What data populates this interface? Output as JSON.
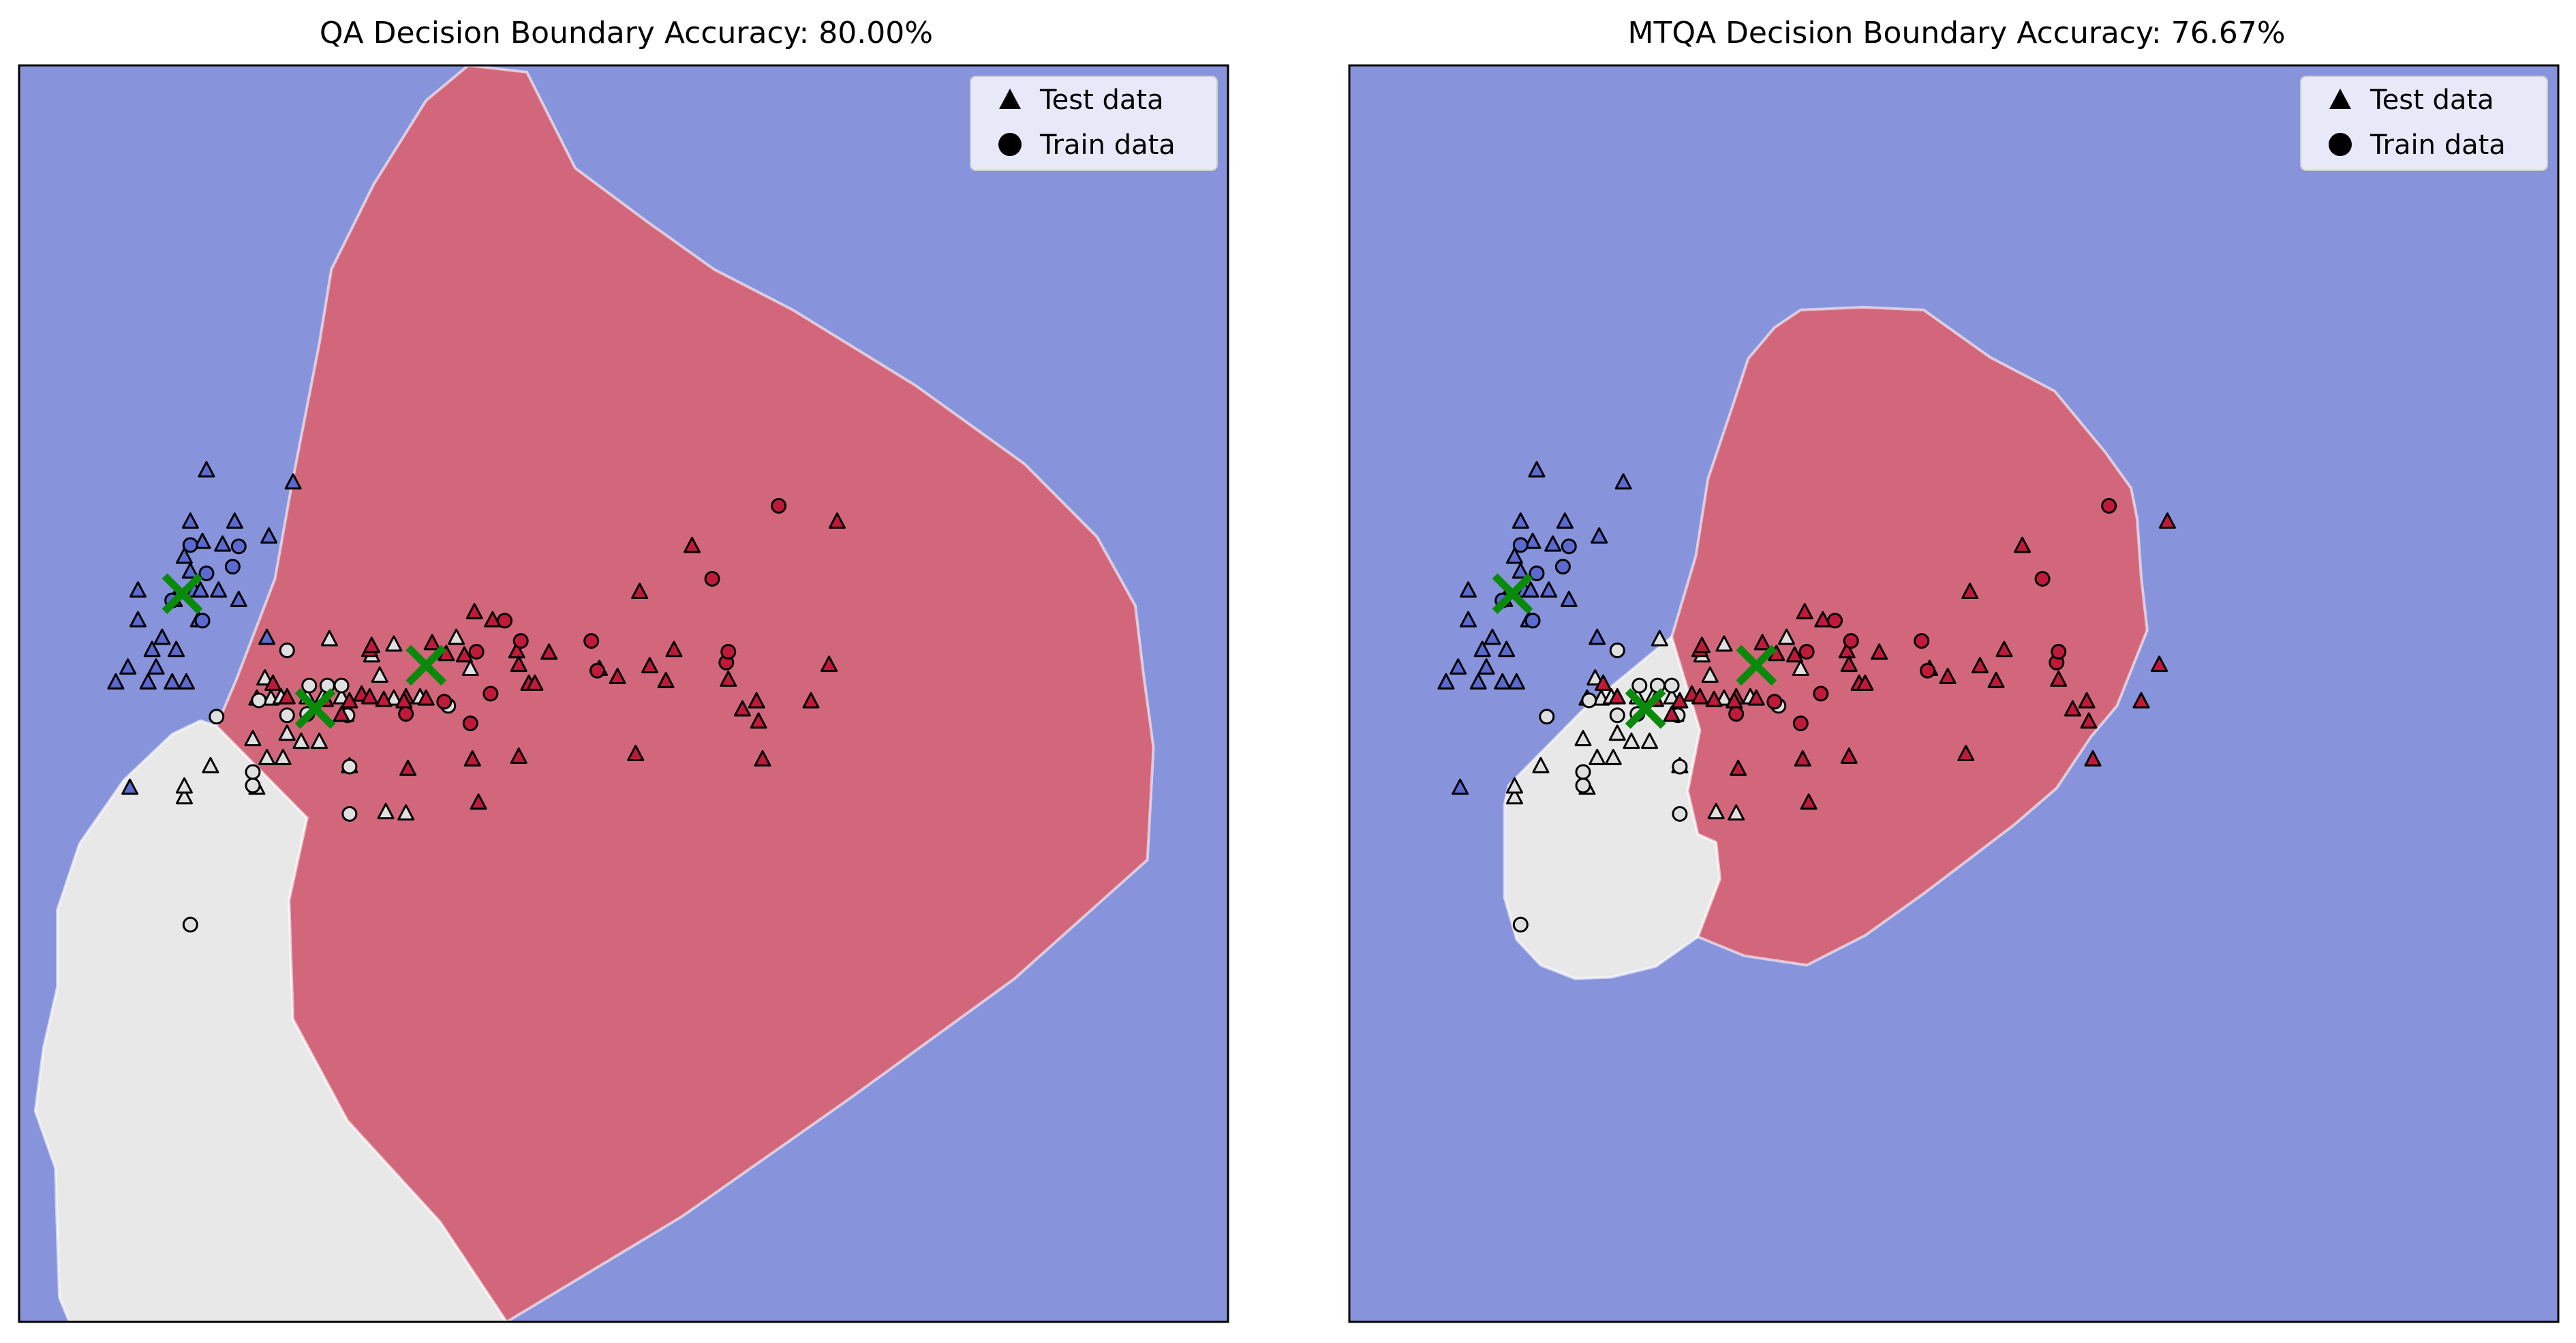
{
  "legend": {
    "test_label": "Test data",
    "train_label": "Train data"
  },
  "colors": {
    "class0": "#5a6acf",
    "class1": "#e0e0e0",
    "class2": "#c01a3a",
    "region0": "#8793db",
    "region1": "#e8e8e8",
    "region2": "#d2677c",
    "centroid": "#0a8a0a"
  },
  "chart_data": [
    {
      "type": "scatter",
      "title": "QA Decision Boundary Accuracy: 80.00%",
      "xlabel": "",
      "ylabel": "",
      "axes_ticks": "none",
      "legend_position": "top-right",
      "regions": [
        {
          "class": 0,
          "area": "background"
        },
        {
          "class": 1,
          "polygon": [
            [
              16.7,
              0
            ],
            [
              24.2,
              0
            ],
            [
              20.9,
              7.4
            ],
            [
              16.3,
              14.9
            ],
            [
              13.6,
              22.4
            ],
            [
              13.4,
              31.2
            ],
            [
              14.3,
              37.3
            ],
            [
              9.8,
              44.1
            ],
            [
              9.0,
              44.5
            ],
            [
              7.6,
              43.5
            ],
            [
              5.2,
              40.1
            ],
            [
              3.0,
              35.4
            ],
            [
              1.9,
              30.5
            ],
            [
              1.9,
              24.8
            ],
            [
              1.2,
              20.2
            ],
            [
              0.8,
              15.6
            ],
            [
              1.8,
              11.4
            ],
            [
              1.9,
              6.2
            ],
            [
              2.0,
              1.8
            ],
            [
              2.5,
              0
            ]
          ]
        },
        {
          "class": 2,
          "polygon": [
            [
              24.2,
              0
            ],
            [
              32.9,
              7.8
            ],
            [
              41.2,
              16.5
            ],
            [
              49.4,
              25.4
            ],
            [
              56.0,
              34.2
            ],
            [
              56.3,
              42.5
            ],
            [
              55.8,
              48.0
            ],
            [
              55.4,
              53.0
            ],
            [
              53.5,
              58.1
            ],
            [
              49.9,
              63.5
            ],
            [
              44.5,
              69.3
            ],
            [
              38.4,
              74.9
            ],
            [
              34.5,
              77.9
            ],
            [
              31.2,
              81.4
            ],
            [
              27.6,
              85.4
            ],
            [
              25.2,
              92.5
            ],
            [
              22.3,
              93.0
            ],
            [
              20.2,
              90.4
            ],
            [
              17.6,
              84.2
            ],
            [
              15.5,
              77.9
            ],
            [
              14.9,
              72.4
            ],
            [
              13.5,
              61.7
            ],
            [
              12.7,
              55.0
            ],
            [
              10.8,
              47.6
            ],
            [
              9.8,
              44.1
            ],
            [
              14.3,
              37.3
            ],
            [
              13.4,
              31.2
            ],
            [
              13.6,
              22.4
            ],
            [
              16.3,
              14.9
            ],
            [
              20.9,
              7.4
            ]
          ]
        }
      ],
      "centroids": [
        {
          "x": 8.1,
          "y": 53.9
        },
        [
          14.7,
          45.4
        ],
        [
          20.2,
          48.6
        ]
      ],
      "points": [
        [
          9.3,
          63.0,
          0,
          "t"
        ],
        [
          10.7,
          59.2,
          0,
          "t"
        ],
        [
          12.4,
          58.1,
          0,
          "t"
        ],
        [
          9.1,
          57.7,
          0,
          "t"
        ],
        [
          8.2,
          56.6,
          0,
          "t"
        ],
        [
          5.9,
          54.1,
          0,
          "t"
        ],
        [
          7.7,
          53.4,
          0,
          "t"
        ],
        [
          8.7,
          54.1,
          0,
          "t"
        ],
        [
          5.9,
          51.9,
          0,
          "t"
        ],
        [
          8.9,
          51.9,
          0,
          "t"
        ],
        [
          4.8,
          47.3,
          0,
          "t"
        ],
        [
          5.4,
          48.4,
          0,
          "t"
        ],
        [
          6.4,
          47.3,
          0,
          "t"
        ],
        [
          6.8,
          48.4,
          0,
          "t"
        ],
        [
          7.8,
          49.7,
          0,
          "t"
        ],
        [
          7.6,
          47.3,
          0,
          "t"
        ],
        [
          8.3,
          47.3,
          0,
          "t"
        ],
        [
          6.6,
          49.7,
          0,
          "t"
        ],
        [
          9.0,
          54.1,
          0,
          "t"
        ],
        [
          8.5,
          55.5,
          0,
          "t"
        ],
        [
          9.9,
          54.1,
          0,
          "t"
        ],
        [
          10.9,
          53.4,
          0,
          "t"
        ],
        [
          12.3,
          50.6,
          0,
          "t"
        ],
        [
          8.5,
          59.2,
          0,
          "t"
        ],
        [
          10.1,
          57.5,
          0,
          "t"
        ],
        [
          13.6,
          62.1,
          0,
          "t"
        ],
        [
          7.1,
          50.6,
          0,
          "t"
        ],
        [
          5.5,
          39.5,
          0,
          "t"
        ],
        [
          9.3,
          55.4,
          0,
          "c"
        ],
        [
          8.5,
          57.5,
          0,
          "c"
        ],
        [
          10.9,
          57.4,
          0,
          "c"
        ],
        [
          7.6,
          53.4,
          0,
          "c"
        ],
        [
          10.6,
          55.9,
          0,
          "c"
        ],
        [
          9.1,
          51.9,
          0,
          "c"
        ],
        [
          12.2,
          47.6,
          1,
          "t"
        ],
        [
          11.8,
          46.1,
          1,
          "t"
        ],
        [
          12.5,
          46.1,
          1,
          "t"
        ],
        [
          13.0,
          46.2,
          1,
          "t"
        ],
        [
          14.3,
          46.2,
          1,
          "t"
        ],
        [
          15.1,
          46.3,
          1,
          "t"
        ],
        [
          16.0,
          46.2,
          1,
          "t"
        ],
        [
          17.5,
          49.3,
          1,
          "t"
        ],
        [
          18.6,
          46.1,
          1,
          "t"
        ],
        [
          17.9,
          47.8,
          1,
          "t"
        ],
        [
          19.9,
          46.2,
          1,
          "t"
        ],
        [
          22.4,
          48.3,
          1,
          "t"
        ],
        [
          21.7,
          50.6,
          1,
          "t"
        ],
        [
          15.4,
          50.5,
          1,
          "t"
        ],
        [
          18.6,
          50.1,
          1,
          "t"
        ],
        [
          13.3,
          43.5,
          1,
          "t"
        ],
        [
          13.1,
          41.7,
          1,
          "t"
        ],
        [
          12.3,
          41.7,
          1,
          "t"
        ],
        [
          14.0,
          42.9,
          1,
          "t"
        ],
        [
          11.8,
          39.5,
          1,
          "t"
        ],
        [
          14.9,
          42.9,
          1,
          "t"
        ],
        [
          11.6,
          43.1,
          1,
          "t"
        ],
        [
          16.4,
          41.1,
          1,
          "t"
        ],
        [
          18.2,
          37.7,
          1,
          "t"
        ],
        [
          19.2,
          37.6,
          1,
          "t"
        ],
        [
          9.5,
          41.1,
          1,
          "t"
        ],
        [
          8.2,
          38.8,
          1,
          "t"
        ],
        [
          16.2,
          44.9,
          1,
          "t"
        ],
        [
          8.2,
          39.6,
          1,
          "t"
        ],
        [
          11.9,
          46.0,
          1,
          "c"
        ],
        [
          15.3,
          47.1,
          1,
          "c"
        ],
        [
          14.4,
          47.1,
          1,
          "c"
        ],
        [
          16.0,
          47.1,
          1,
          "c"
        ],
        [
          13.3,
          44.9,
          1,
          "c"
        ],
        [
          13.3,
          49.7,
          1,
          "c"
        ],
        [
          14.3,
          45.0,
          1,
          "c"
        ],
        [
          16.3,
          44.9,
          1,
          "c"
        ],
        [
          21.3,
          45.6,
          1,
          "c"
        ],
        [
          9.8,
          44.8,
          1,
          "c"
        ],
        [
          11.6,
          40.7,
          1,
          "c"
        ],
        [
          11.6,
          39.7,
          1,
          "c"
        ],
        [
          16.4,
          37.6,
          1,
          "c"
        ],
        [
          16.4,
          41.1,
          1,
          "c"
        ],
        [
          8.5,
          29.4,
          1,
          "c"
        ],
        [
          12.6,
          47.2,
          2,
          "t"
        ],
        [
          13.3,
          46.2,
          2,
          "t"
        ],
        [
          15.2,
          46.0,
          2,
          "t"
        ],
        [
          16.4,
          45.9,
          2,
          "t"
        ],
        [
          17.0,
          46.4,
          2,
          "t"
        ],
        [
          17.4,
          46.2,
          2,
          "t"
        ],
        [
          18.1,
          46.0,
          2,
          "t"
        ],
        [
          19.2,
          46.2,
          2,
          "t"
        ],
        [
          20.2,
          46.1,
          2,
          "t"
        ],
        [
          19.1,
          45.9,
          2,
          "t"
        ],
        [
          17.4,
          49.7,
          2,
          "t"
        ],
        [
          17.5,
          50.0,
          2,
          "t"
        ],
        [
          20.5,
          50.2,
          2,
          "t"
        ],
        [
          21.2,
          49.4,
          2,
          "t"
        ],
        [
          22.1,
          49.3,
          2,
          "t"
        ],
        [
          23.5,
          51.9,
          2,
          "t"
        ],
        [
          24.7,
          49.6,
          2,
          "t"
        ],
        [
          24.8,
          48.6,
          2,
          "t"
        ],
        [
          25.3,
          47.2,
          2,
          "t"
        ],
        [
          25.6,
          47.2,
          2,
          "t"
        ],
        [
          26.3,
          49.5,
          2,
          "t"
        ],
        [
          28.8,
          48.3,
          2,
          "t"
        ],
        [
          29.7,
          47.7,
          2,
          "t"
        ],
        [
          31.3,
          48.5,
          2,
          "t"
        ],
        [
          32.1,
          47.4,
          2,
          "t"
        ],
        [
          35.2,
          47.5,
          2,
          "t"
        ],
        [
          35.9,
          45.3,
          2,
          "t"
        ],
        [
          36.6,
          45.9,
          2,
          "t"
        ],
        [
          36.7,
          44.4,
          2,
          "t"
        ],
        [
          36.9,
          41.6,
          2,
          "t"
        ],
        [
          30.8,
          54.0,
          2,
          "t"
        ],
        [
          33.4,
          57.4,
          2,
          "t"
        ],
        [
          32.5,
          49.7,
          2,
          "t"
        ],
        [
          40.6,
          59.2,
          2,
          "t"
        ],
        [
          40.2,
          48.6,
          2,
          "t"
        ],
        [
          39.3,
          45.9,
          2,
          "t"
        ],
        [
          30.6,
          42.0,
          2,
          "t"
        ],
        [
          22.8,
          38.4,
          2,
          "t"
        ],
        [
          24.8,
          41.8,
          2,
          "t"
        ],
        [
          19.3,
          40.9,
          2,
          "t"
        ],
        [
          16.0,
          44.9,
          2,
          "t"
        ],
        [
          22.6,
          52.5,
          2,
          "t"
        ],
        [
          22.5,
          41.6,
          2,
          "t"
        ],
        [
          28.7,
          48.2,
          2,
          "c"
        ],
        [
          28.4,
          50.4,
          2,
          "c"
        ],
        [
          24.9,
          50.4,
          2,
          "c"
        ],
        [
          22.7,
          49.6,
          2,
          "c"
        ],
        [
          24.1,
          51.9,
          2,
          "c"
        ],
        [
          23.4,
          46.5,
          2,
          "c"
        ],
        [
          22.4,
          44.3,
          2,
          "c"
        ],
        [
          19.2,
          45.0,
          2,
          "c"
        ],
        [
          21.1,
          45.9,
          2,
          "c"
        ],
        [
          35.1,
          48.8,
          2,
          "c"
        ],
        [
          35.2,
          49.6,
          2,
          "c"
        ],
        [
          34.4,
          55.0,
          2,
          "c"
        ],
        [
          37.7,
          60.4,
          2,
          "c"
        ]
      ]
    },
    {
      "type": "scatter",
      "title": "MTQA Decision Boundary Accuracy: 76.67%",
      "xlabel": "",
      "ylabel": "",
      "axes_ticks": "none",
      "legend_position": "top-right",
      "regions": [
        {
          "class": 0,
          "area": "background"
        },
        {
          "class": 1,
          "polygon": [
            [
              17.4,
              43.8
            ],
            [
              16.8,
              39.3
            ],
            [
              17.3,
              36.1
            ],
            [
              18.2,
              35.5
            ],
            [
              18.4,
              32.8
            ],
            [
              17.3,
              28.5
            ],
            [
              15.2,
              26.3
            ],
            [
              13.0,
              25.5
            ],
            [
              11.2,
              25.4
            ],
            [
              9.5,
              26.4
            ],
            [
              8.3,
              28.3
            ],
            [
              7.7,
              31.4
            ],
            [
              7.7,
              38.3
            ],
            [
              7.9,
              39.7
            ],
            [
              11.6,
              45.3
            ],
            [
              16.0,
              50.7
            ]
          ]
        },
        {
          "class": 2,
          "polygon": [
            [
              16.0,
              50.7
            ],
            [
              17.4,
              43.8
            ],
            [
              16.8,
              39.3
            ],
            [
              17.3,
              36.1
            ],
            [
              18.2,
              35.5
            ],
            [
              18.4,
              32.8
            ],
            [
              17.3,
              28.5
            ],
            [
              19.6,
              27.1
            ],
            [
              22.7,
              26.4
            ],
            [
              25.6,
              28.6
            ],
            [
              28.5,
              31.7
            ],
            [
              30.8,
              34.3
            ],
            [
              33.0,
              36.8
            ],
            [
              35.1,
              39.5
            ],
            [
              36.8,
              43.3
            ],
            [
              38.1,
              45.6
            ],
            [
              39.6,
              51.2
            ],
            [
              39.3,
              55.1
            ],
            [
              39.1,
              59.4
            ],
            [
              38.8,
              61.7
            ],
            [
              37.5,
              64.4
            ],
            [
              35.0,
              68.9
            ],
            [
              31.8,
              71.4
            ],
            [
              28.5,
              74.9
            ],
            [
              25.5,
              75.1
            ],
            [
              22.4,
              74.9
            ],
            [
              21.1,
              73.6
            ],
            [
              19.8,
              71.3
            ],
            [
              19.0,
              67.7
            ],
            [
              17.8,
              62.4
            ],
            [
              17.2,
              56.7
            ]
          ]
        }
      ],
      "centroids": [
        [
          8.1,
          53.9
        ],
        [
          14.7,
          45.4
        ],
        [
          20.2,
          48.6
        ]
      ],
      "points_same_as_panel": 1
    }
  ]
}
